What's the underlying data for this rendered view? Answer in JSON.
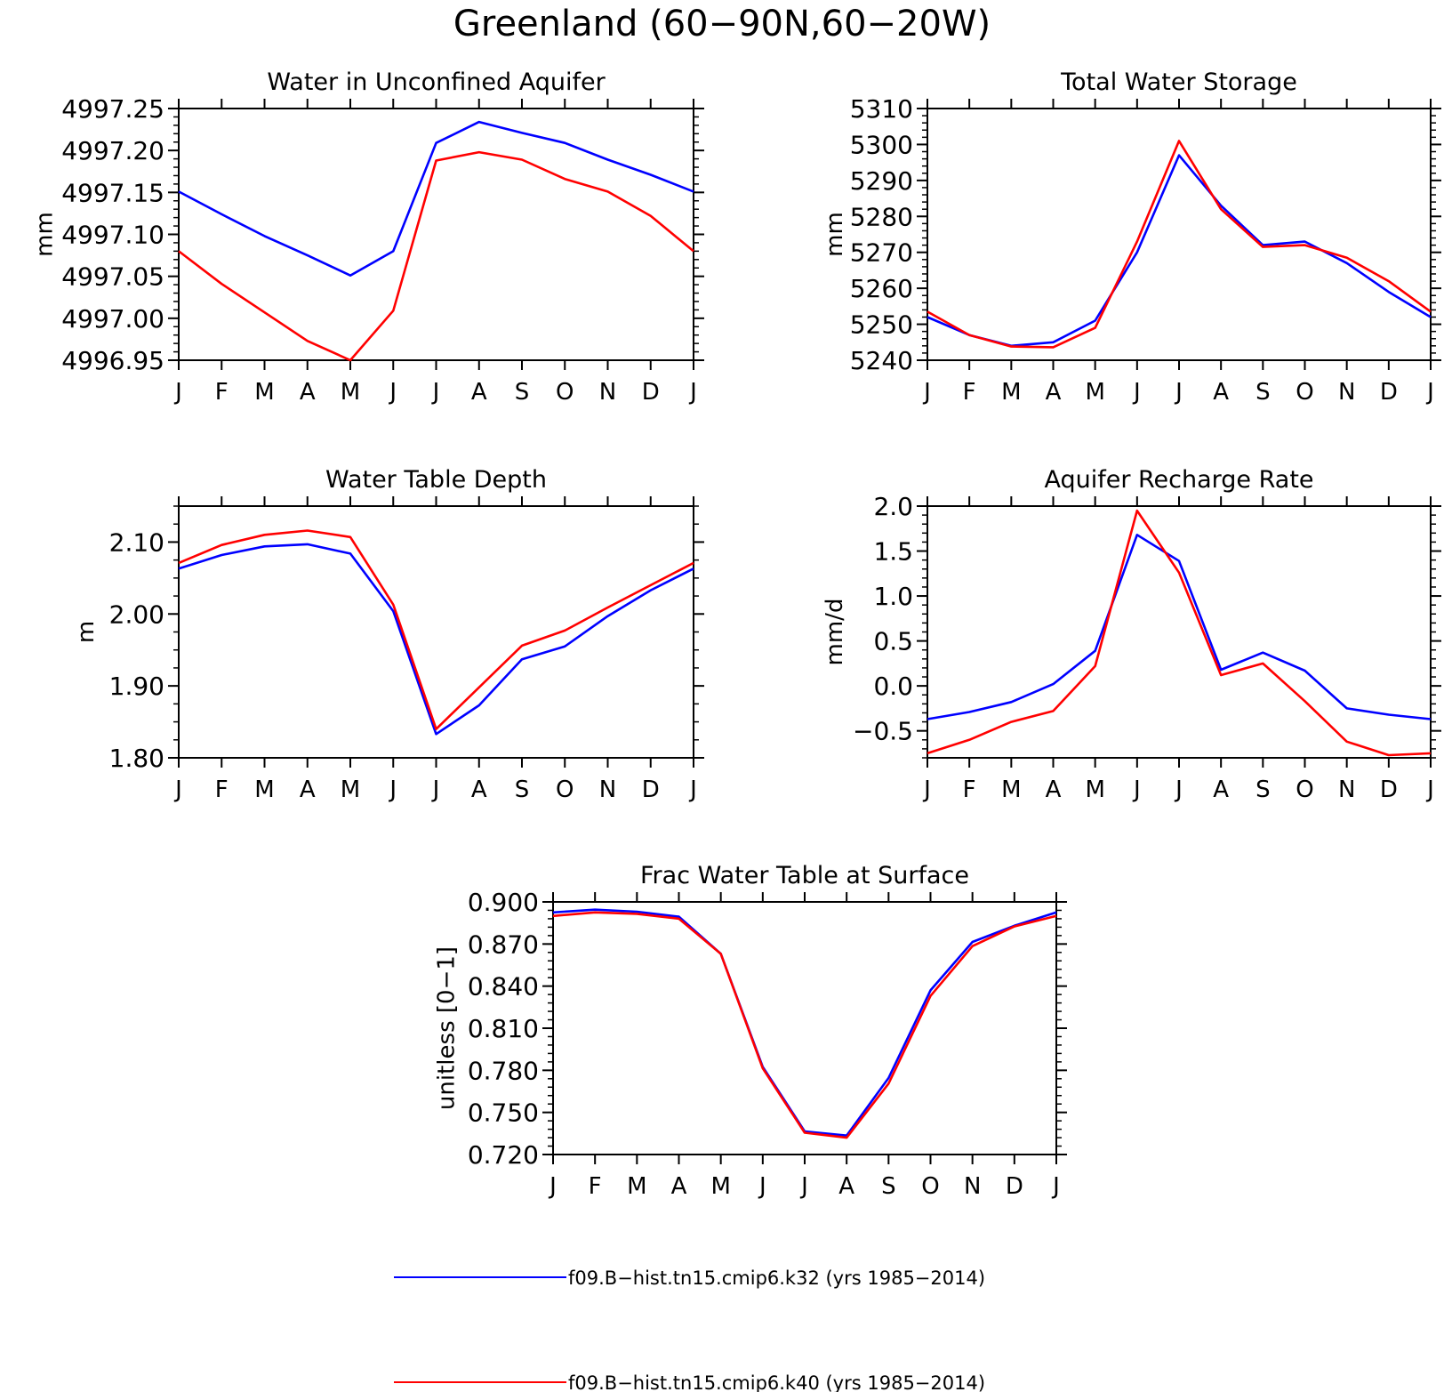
{
  "figure": {
    "title": "Greenland (60−90N,60−20W)"
  },
  "months": [
    "J",
    "F",
    "M",
    "A",
    "M",
    "J",
    "J",
    "A",
    "S",
    "O",
    "N",
    "D",
    "J"
  ],
  "legend": [
    {
      "label": "f09.B−hist.tn15.cmip6.k32 (yrs 1985−2014)",
      "color": "#0000ff"
    },
    {
      "label": "f09.B−hist.tn15.cmip6.k40 (yrs 1985−2014)",
      "color": "#ff0000"
    }
  ],
  "chart_data": [
    {
      "type": "line",
      "title": "Water in Unconfined Aquifer",
      "xlabel": "",
      "ylabel": "mm",
      "categories": [
        "J",
        "F",
        "M",
        "A",
        "M",
        "J",
        "J",
        "A",
        "S",
        "O",
        "N",
        "D",
        "J"
      ],
      "ylim": [
        4996.95,
        4997.25
      ],
      "yticks": [
        4996.95,
        4997.0,
        4997.05,
        4997.1,
        4997.15,
        4997.2,
        4997.25
      ],
      "ytick_labels": [
        "4996.95",
        "4997.00",
        "4997.05",
        "4997.10",
        "4997.15",
        "4997.20",
        "4997.25"
      ],
      "yminor": 0.01,
      "series": [
        {
          "name": "f09.B−hist.tn15.cmip6.k32 (yrs 1985−2014)",
          "color": "#0000ff",
          "values": [
            4997.151,
            4997.124,
            4997.098,
            4997.075,
            4997.051,
            4997.08,
            4997.209,
            4997.234,
            4997.221,
            4997.209,
            4997.189,
            4997.171,
            4997.151
          ]
        },
        {
          "name": "f09.B−hist.tn15.cmip6.k40 (yrs 1985−2014)",
          "color": "#ff0000",
          "values": [
            4997.08,
            4997.041,
            4997.007,
            4996.973,
            4996.95,
            4997.009,
            4997.188,
            4997.198,
            4997.189,
            4997.166,
            4997.151,
            4997.122,
            4997.08
          ]
        }
      ]
    },
    {
      "type": "line",
      "title": "Total Water Storage",
      "xlabel": "",
      "ylabel": "mm",
      "categories": [
        "J",
        "F",
        "M",
        "A",
        "M",
        "J",
        "J",
        "A",
        "S",
        "O",
        "N",
        "D",
        "J"
      ],
      "ylim": [
        5240,
        5310
      ],
      "yticks": [
        5240,
        5250,
        5260,
        5270,
        5280,
        5290,
        5300,
        5310
      ],
      "ytick_labels": [
        "5240",
        "5250",
        "5260",
        "5270",
        "5280",
        "5290",
        "5300",
        "5310"
      ],
      "yminor": 2,
      "series": [
        {
          "name": "f09.B−hist.tn15.cmip6.k32 (yrs 1985−2014)",
          "color": "#0000ff",
          "values": [
            5252.0,
            5247.0,
            5244.0,
            5245.0,
            5251.0,
            5270.0,
            5297.0,
            5283.0,
            5272.0,
            5273.0,
            5267.0,
            5259.0,
            5252.0
          ]
        },
        {
          "name": "f09.B−hist.tn15.cmip6.k40 (yrs 1985−2014)",
          "color": "#ff0000",
          "values": [
            5253.5,
            5247.0,
            5243.8,
            5243.6,
            5249.0,
            5273.0,
            5301.0,
            5282.0,
            5271.5,
            5272.0,
            5268.5,
            5262.0,
            5253.5
          ]
        }
      ]
    },
    {
      "type": "line",
      "title": "Water Table Depth",
      "xlabel": "",
      "ylabel": "m",
      "categories": [
        "J",
        "F",
        "M",
        "A",
        "M",
        "J",
        "J",
        "A",
        "S",
        "O",
        "N",
        "D",
        "J"
      ],
      "ylim": [
        1.8,
        2.15
      ],
      "yticks": [
        1.8,
        1.9,
        2.0,
        2.1
      ],
      "ytick_labels": [
        "1.80",
        "1.90",
        "2.00",
        "2.10"
      ],
      "yminor": 0.025,
      "series": [
        {
          "name": "f09.B−hist.tn15.cmip6.k32 (yrs 1985−2014)",
          "color": "#0000ff",
          "values": [
            2.063,
            2.082,
            2.094,
            2.097,
            2.084,
            2.004,
            1.833,
            1.873,
            1.937,
            1.955,
            1.997,
            2.033,
            2.063
          ]
        },
        {
          "name": "f09.B−hist.tn15.cmip6.k40 (yrs 1985−2014)",
          "color": "#ff0000",
          "values": [
            2.071,
            2.096,
            2.11,
            2.116,
            2.107,
            2.013,
            1.84,
            1.898,
            1.956,
            1.977,
            2.009,
            2.04,
            2.071
          ]
        }
      ]
    },
    {
      "type": "line",
      "title": "Aquifer Recharge Rate",
      "xlabel": "",
      "ylabel": "mm/d",
      "categories": [
        "J",
        "F",
        "M",
        "A",
        "M",
        "J",
        "J",
        "A",
        "S",
        "O",
        "N",
        "D",
        "J"
      ],
      "ylim": [
        -0.8,
        2.0
      ],
      "yticks": [
        -0.5,
        0.0,
        0.5,
        1.0,
        1.5,
        2.0
      ],
      "ytick_labels": [
        "−0.5",
        "0.0",
        "0.5",
        "1.0",
        "1.5",
        "2.0"
      ],
      "yminor": 0.1,
      "series": [
        {
          "name": "f09.B−hist.tn15.cmip6.k32 (yrs 1985−2014)",
          "color": "#0000ff",
          "values": [
            -0.37,
            -0.29,
            -0.18,
            0.02,
            0.39,
            1.68,
            1.39,
            0.18,
            0.37,
            0.17,
            -0.25,
            -0.32,
            -0.37
          ]
        },
        {
          "name": "f09.B−hist.tn15.cmip6.k40 (yrs 1985−2014)",
          "color": "#ff0000",
          "values": [
            -0.75,
            -0.6,
            -0.4,
            -0.28,
            0.22,
            1.95,
            1.26,
            0.12,
            0.25,
            -0.17,
            -0.62,
            -0.77,
            -0.75
          ]
        }
      ]
    },
    {
      "type": "line",
      "title": "Frac Water Table at Surface",
      "xlabel": "",
      "ylabel": "unitless [0−1]",
      "categories": [
        "J",
        "F",
        "M",
        "A",
        "M",
        "J",
        "J",
        "A",
        "S",
        "O",
        "N",
        "D",
        "J"
      ],
      "ylim": [
        0.72,
        0.9
      ],
      "yticks": [
        0.72,
        0.75,
        0.78,
        0.81,
        0.84,
        0.87,
        0.9
      ],
      "ytick_labels": [
        "0.720",
        "0.750",
        "0.780",
        "0.810",
        "0.840",
        "0.870",
        "0.900"
      ],
      "yminor": 0.006,
      "series": [
        {
          "name": "f09.B−hist.tn15.cmip6.k32 (yrs 1985−2014)",
          "color": "#0000ff",
          "values": [
            0.8925,
            0.8945,
            0.893,
            0.8895,
            0.863,
            0.7825,
            0.7365,
            0.7335,
            0.7745,
            0.837,
            0.8715,
            0.883,
            0.8925
          ]
        },
        {
          "name": "f09.B−hist.tn15.cmip6.k40 (yrs 1985−2014)",
          "color": "#ff0000",
          "values": [
            0.89,
            0.8925,
            0.8915,
            0.888,
            0.863,
            0.7815,
            0.7355,
            0.732,
            0.7705,
            0.833,
            0.8685,
            0.8825,
            0.89
          ]
        }
      ]
    }
  ]
}
